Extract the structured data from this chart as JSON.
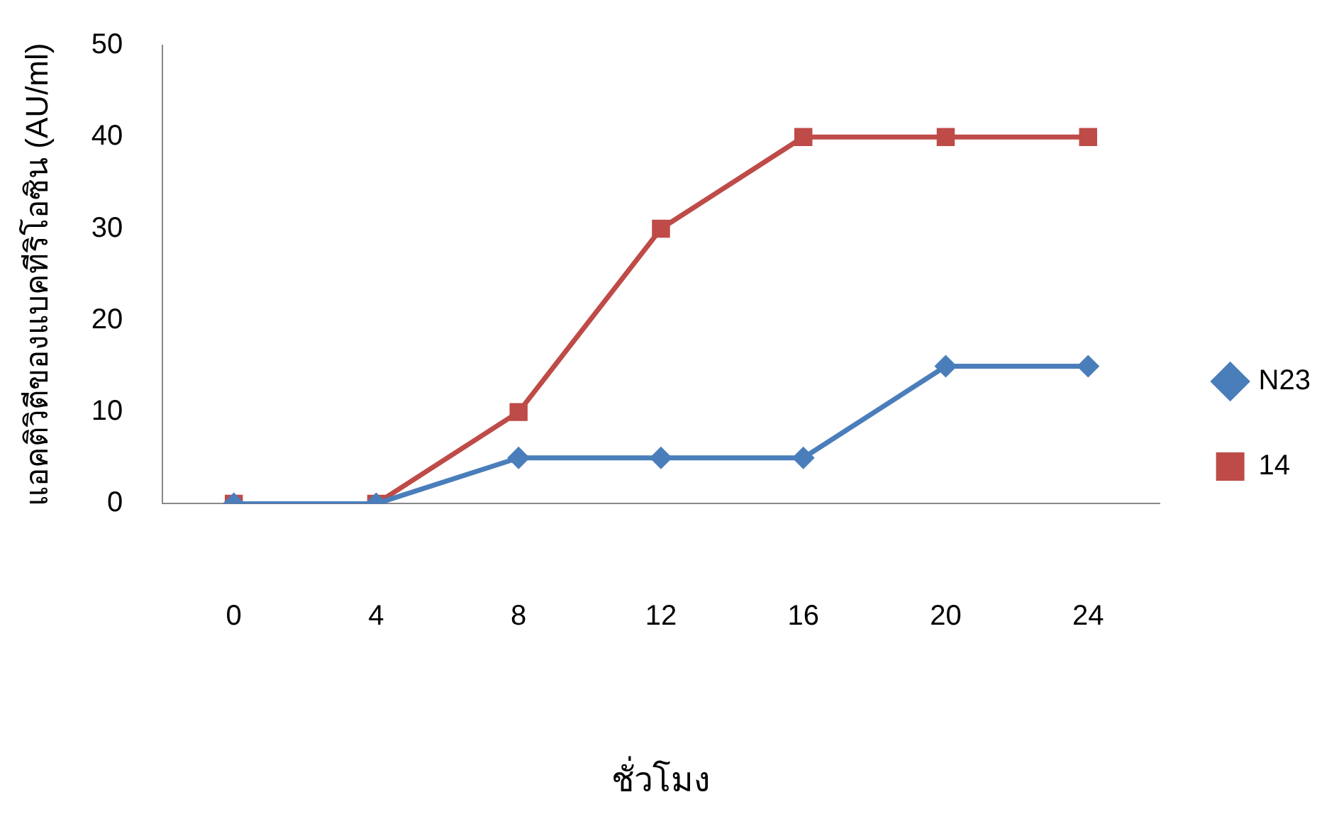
{
  "chart_data": {
    "type": "line",
    "xlabel": "ชั่วโมง",
    "ylabel": "แอคติวิตีของแบคทีริโอซิน (AU/ml)",
    "categories": [
      "0",
      "4",
      "8",
      "12",
      "16",
      "20",
      "24"
    ],
    "series": [
      {
        "name": "N23",
        "color": "#4a7ebb",
        "marker": "diamond",
        "values": [
          0,
          0,
          5,
          5,
          5,
          15,
          15
        ]
      },
      {
        "name": "14",
        "color": "#be4b48",
        "marker": "square",
        "values": [
          0,
          0,
          10,
          30,
          40,
          40,
          40
        ]
      }
    ],
    "ylim": [
      0,
      50
    ],
    "yticks": [
      0,
      10,
      20,
      30,
      40,
      50
    ],
    "grid": false,
    "legend": "right",
    "line_style": "solid"
  }
}
